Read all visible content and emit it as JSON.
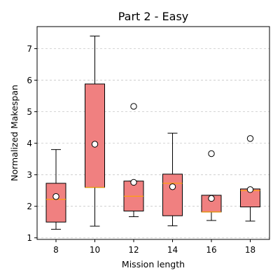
{
  "chart_data": {
    "type": "box",
    "title": "Part 2 - Easy",
    "xlabel": "Mission length",
    "ylabel": "Normalized Makespan",
    "ylim": [
      0.95,
      7.7
    ],
    "yticks": [
      "1",
      "2",
      "3",
      "4",
      "5",
      "6",
      "7"
    ],
    "grid": "horizontal dashed",
    "colors": {
      "box_fill": "#f08080",
      "median": "#ffa500",
      "mean_marker": "#ffffff"
    },
    "categories": [
      "8",
      "10",
      "12",
      "14",
      "16",
      "18"
    ],
    "boxes": [
      {
        "category": "8",
        "whisker_low": 1.27,
        "q1": 1.5,
        "median": 2.22,
        "q3": 2.73,
        "whisker_high": 3.8,
        "mean": 2.31,
        "outliers": []
      },
      {
        "category": "10",
        "whisker_low": 1.37,
        "q1": 2.6,
        "median": 2.6,
        "q3": 5.88,
        "whisker_high": 7.4,
        "mean": 3.97,
        "outliers": []
      },
      {
        "category": "12",
        "whisker_low": 1.67,
        "q1": 1.85,
        "median": 2.32,
        "q3": 2.8,
        "whisker_high": 2.8,
        "mean": 2.76,
        "outliers": [
          5.17
        ]
      },
      {
        "category": "14",
        "whisker_low": 1.38,
        "q1": 1.7,
        "median": 2.73,
        "q3": 3.02,
        "whisker_high": 4.32,
        "mean": 2.62,
        "outliers": []
      },
      {
        "category": "16",
        "whisker_low": 1.55,
        "q1": 1.82,
        "median": 1.82,
        "q3": 2.35,
        "whisker_high": 2.35,
        "mean": 2.25,
        "outliers": [
          3.67
        ]
      },
      {
        "category": "18",
        "whisker_low": 1.53,
        "q1": 1.98,
        "median": 2.5,
        "q3": 2.55,
        "whisker_high": 2.55,
        "mean": 2.53,
        "outliers": [
          4.15
        ]
      }
    ]
  }
}
